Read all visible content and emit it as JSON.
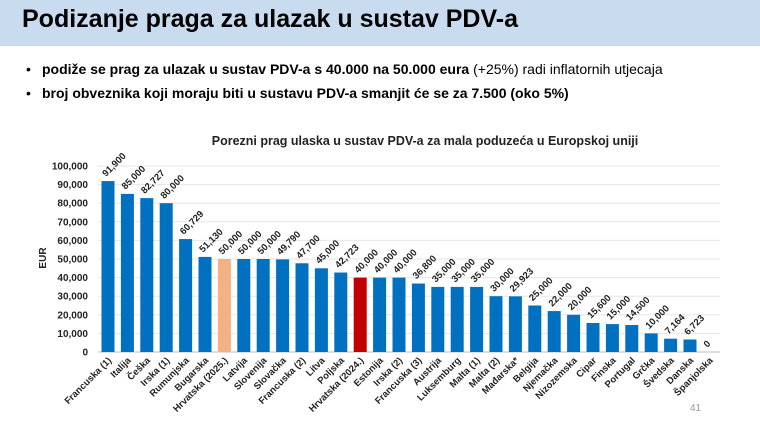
{
  "slide": {
    "title": "Podizanje praga za ulazak u sustav PDV-a",
    "bullets": [
      {
        "bold": "podiže se prag za ulazak u sustav PDV-a s 40.000 na 50.000 eura",
        "normal": " (+25%) radi inflatornih utjecaja"
      },
      {
        "bold": "broj obveznika koji moraju biti u sustavu PDV-a smanjit će se za 7.500 (oko 5%)",
        "normal": ""
      }
    ],
    "page_number": "41"
  },
  "chart_data": {
    "type": "bar",
    "title": "Porezni prag ulaska u sustav PDV-a za mala poduzeća u Europskoj uniji",
    "xlabel": "",
    "ylabel": "EUR",
    "ylim": [
      0,
      100000
    ],
    "yticks": [
      "0",
      "10,000",
      "20,000",
      "30,000",
      "40,000",
      "50,000",
      "60,000",
      "70,000",
      "80,000",
      "90,000",
      "100,000"
    ],
    "grid": true,
    "categories": [
      "Francuska (1)",
      "Italija",
      "Češka",
      "Irska (1)",
      "Rumunjska",
      "Bugarska",
      "Hrvatska (2025.)",
      "Latvija",
      "Slovenija",
      "Slovačka",
      "Francuska (2)",
      "Litva",
      "Poljska",
      "Hrvatska (2024.)",
      "Estonija",
      "Irska (2)",
      "Francuska (3)",
      "Austrija",
      "Luksemburg",
      "Malta (1)",
      "Malta (2)",
      "Mađarska*",
      "Belgija",
      "Njemačka",
      "Nizozemska",
      "Cipar",
      "Finska",
      "Portugal",
      "Grčka",
      "Švedska",
      "Danska",
      "Španjolska"
    ],
    "values": [
      91900,
      85000,
      82727,
      80000,
      60729,
      51130,
      50000,
      50000,
      50000,
      49790,
      47700,
      45000,
      42723,
      40000,
      40000,
      40000,
      36800,
      35000,
      35000,
      35000,
      30000,
      29923,
      25000,
      22000,
      20000,
      15600,
      15000,
      14500,
      10000,
      7164,
      6723,
      0
    ],
    "labels": [
      "91,900",
      "85,000",
      "82,727",
      "80,000",
      "60,729",
      "51,130",
      "50,000",
      "50,000",
      "50,000",
      "49,790",
      "47,700",
      "45,000",
      "42,723",
      "40,000",
      "40,000",
      "40,000",
      "36,800",
      "35,000",
      "35,000",
      "35,000",
      "30,000",
      "29,923",
      "25,000",
      "22,000",
      "20,000",
      "15,600",
      "15,000",
      "14,500",
      "10,000",
      "7,164",
      "6,723",
      "0"
    ],
    "colors": {
      "default": "#0070c0",
      "Hrvatska (2025.)": "#f4b183",
      "Hrvatska (2024.)": "#c00000"
    }
  }
}
